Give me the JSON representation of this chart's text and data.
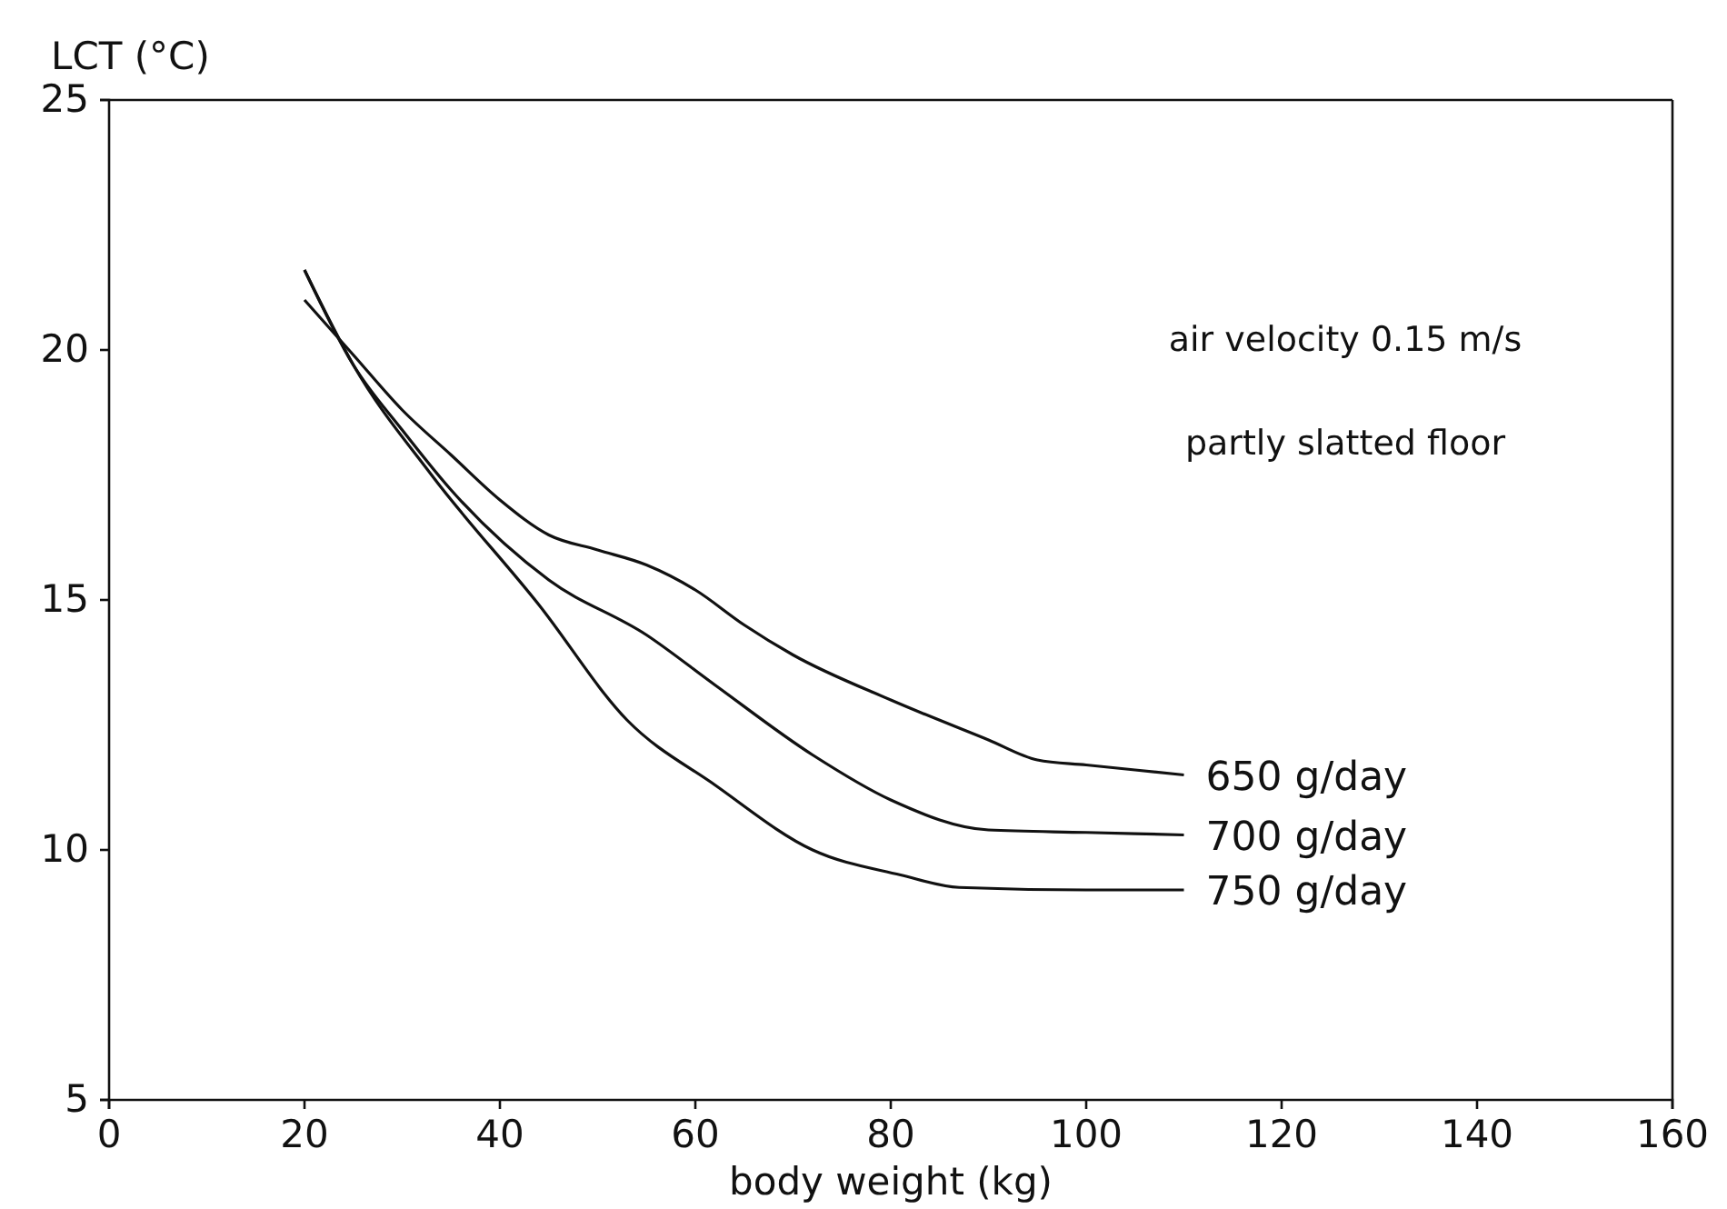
{
  "chart_data": {
    "type": "line",
    "xlabel": "body weight (kg)",
    "ylabel": "LCT (°C)",
    "xlim": [
      0,
      160
    ],
    "ylim": [
      5,
      25
    ],
    "xticks": [
      0,
      20,
      40,
      60,
      80,
      100,
      120,
      140,
      160
    ],
    "yticks": [
      5,
      10,
      15,
      20,
      25
    ],
    "grid": false,
    "legend": false,
    "marker": "none",
    "line_style": "solid",
    "annotations": [
      "air velocity 0.15 m/s",
      "partly slatted floor"
    ],
    "series": [
      {
        "name": "650 g/day",
        "color": "#111111",
        "x": [
          20,
          25,
          30,
          35,
          40,
          45,
          50,
          55,
          60,
          65,
          70,
          80,
          90,
          95,
          100,
          110
        ],
        "values": [
          21.0,
          19.9,
          18.8,
          17.9,
          17.0,
          16.3,
          16.0,
          15.7,
          15.2,
          14.5,
          13.9,
          13.0,
          12.2,
          11.8,
          11.7,
          11.5
        ]
      },
      {
        "name": "700 g/day",
        "color": "#111111",
        "x": [
          20,
          25,
          30,
          35,
          45,
          55,
          62,
          72,
          80,
          90,
          100,
          110
        ],
        "values": [
          21.6,
          19.7,
          18.4,
          17.2,
          15.4,
          14.3,
          13.3,
          11.9,
          11.0,
          10.4,
          10.35,
          10.3
        ]
      },
      {
        "name": "750 g/day",
        "color": "#111111",
        "x": [
          20,
          25,
          33,
          44,
          53,
          62,
          72,
          81,
          87,
          100,
          110
        ],
        "values": [
          21.6,
          19.7,
          17.5,
          14.9,
          12.6,
          11.3,
          10.0,
          9.5,
          9.25,
          9.2,
          9.2
        ]
      }
    ]
  }
}
